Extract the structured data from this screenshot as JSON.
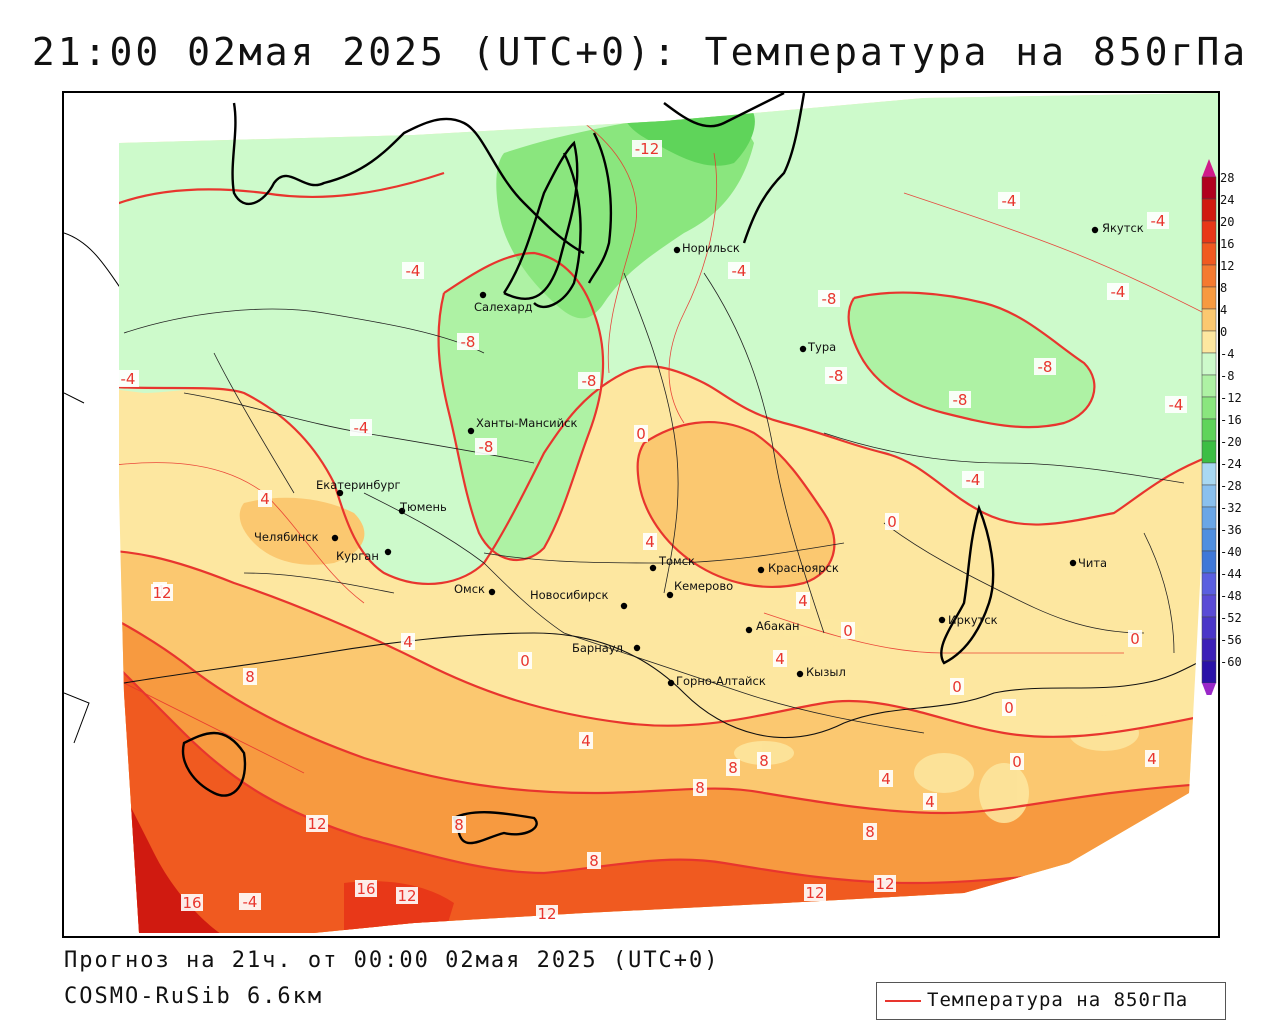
{
  "title": "21:00 02мая 2025 (UTC+0): Температура на 850гПа",
  "forecast_line": "Прогноз на 21ч. от 00:00 02мая 2025 (UTC+0)",
  "model_line": "COSMO-RuSib 6.6км",
  "legend": {
    "label": "Температура на 850гПа",
    "color": "#e8352e"
  },
  "colorbar": {
    "ticks": [
      "28",
      "24",
      "20",
      "16",
      "12",
      "8",
      "4",
      "0",
      "-4",
      "-8",
      "-12",
      "-16",
      "-20",
      "-24",
      "-28",
      "-32",
      "-36",
      "-40",
      "-44",
      "-48",
      "-52",
      "-56",
      "-60"
    ],
    "colors": [
      "#b0001f",
      "#d01a10",
      "#e83818",
      "#f05a20",
      "#f47a30",
      "#f79a40",
      "#fbc870",
      "#fde7a0",
      "#cdfacb",
      "#aef2a4",
      "#8ae67e",
      "#5fd45a",
      "#3cbe44",
      "#a9d8f2",
      "#8ac0ee",
      "#6aa6e6",
      "#4f8fdf",
      "#3f78d8",
      "#5a5fe0",
      "#5a4bd6",
      "#4a36c8",
      "#3b1fb8",
      "#2a12a8"
    ],
    "top_arrow_color": "#d01a8a",
    "bottom_arrow_color": "#9a28c8"
  },
  "cities": [
    {
      "name": "Салехард"
    },
    {
      "name": "Норильск"
    },
    {
      "name": "Якутск"
    },
    {
      "name": "Тура"
    },
    {
      "name": "Ханты-Мансийск"
    },
    {
      "name": "Екатеринбург"
    },
    {
      "name": "Тюмень"
    },
    {
      "name": "Челябинск"
    },
    {
      "name": "Курган"
    },
    {
      "name": "Омск"
    },
    {
      "name": "Томск"
    },
    {
      "name": "Красноярск"
    },
    {
      "name": "Кемерово"
    },
    {
      "name": "Новосибирск"
    },
    {
      "name": "Абакан"
    },
    {
      "name": "Иркутск"
    },
    {
      "name": "Барнаул"
    },
    {
      "name": "Кызыл"
    },
    {
      "name": "Горно-Алтайск"
    },
    {
      "name": "Чита"
    }
  ],
  "contour_labels": [
    "-12",
    "-4",
    "-4",
    "-4",
    "-4",
    "-4",
    "-8",
    "-8",
    "-8",
    "-8",
    "-8",
    "-8",
    "-8",
    "-4",
    "-4",
    "-4",
    "-4",
    "4",
    "4",
    "4",
    "4",
    "4",
    "4",
    "4",
    "4",
    "4",
    "4",
    "8",
    "8",
    "8",
    "8",
    "8",
    "8",
    "8",
    "0",
    "0",
    "0",
    "0",
    "0",
    "0",
    "0",
    "0",
    "12",
    "12",
    "12",
    "12",
    "12",
    "12",
    "16",
    "16",
    "-4"
  ]
}
